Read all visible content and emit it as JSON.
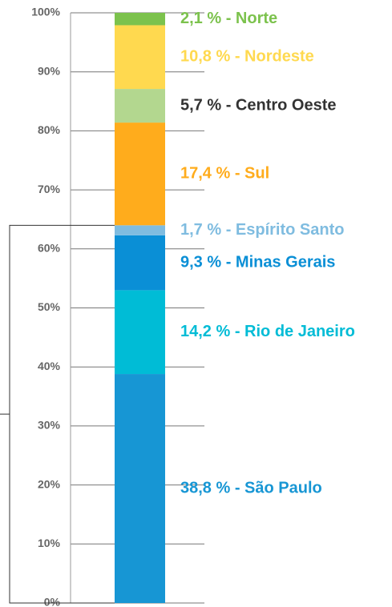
{
  "chart_data": {
    "type": "bar",
    "stacked": true,
    "ylim": [
      0,
      100
    ],
    "yticks": [
      {
        "value": 0,
        "label": "0%"
      },
      {
        "value": 10,
        "label": "10%"
      },
      {
        "value": 20,
        "label": "20%"
      },
      {
        "value": 30,
        "label": "30%"
      },
      {
        "value": 40,
        "label": "40%"
      },
      {
        "value": 50,
        "label": "50%"
      },
      {
        "value": 60,
        "label": "60%"
      },
      {
        "value": 70,
        "label": "70%"
      },
      {
        "value": 80,
        "label": "80%"
      },
      {
        "value": 90,
        "label": "90%"
      },
      {
        "value": 100,
        "label": "100%"
      }
    ],
    "grid": true,
    "series": [
      {
        "color": "#1796d4",
        "label_color": "#1796d4",
        "values": [
          38.8
        ],
        "value_labels": [
          "38,8 % - São Paulo"
        ]
      },
      {
        "color": "#00bcd6",
        "label_color": "#00bcd6",
        "values": [
          14.2
        ],
        "value_labels": [
          "14,2 % - Rio de Janeiro"
        ]
      },
      {
        "color": "#0a8fd6",
        "label_color": "#0a8fd6",
        "values": [
          9.3
        ],
        "value_labels": [
          "9,3 % - Minas Gerais"
        ]
      },
      {
        "color": "#7fbce0",
        "label_color": "#7fbce0",
        "values": [
          1.7
        ],
        "value_labels": [
          "1,7 % - Espírito Santo"
        ]
      },
      {
        "color": "#ffac1c",
        "label_color": "#ffac1c",
        "values": [
          17.4
        ],
        "value_labels": [
          "17,4 % - Sul"
        ]
      },
      {
        "color": "#b3d78f",
        "label_color": "#333333",
        "values": [
          5.7
        ],
        "value_labels": [
          "5,7 % - Centro Oeste"
        ]
      },
      {
        "color": "#ffd94f",
        "label_color": "#ffd94f",
        "values": [
          10.8
        ],
        "value_labels": [
          "10,8 % - Nordeste"
        ]
      },
      {
        "color": "#7cc24d",
        "label_color": "#7cc24d",
        "values": [
          2.1
        ],
        "value_labels": [
          "2,1 % - Norte"
        ]
      }
    ]
  }
}
